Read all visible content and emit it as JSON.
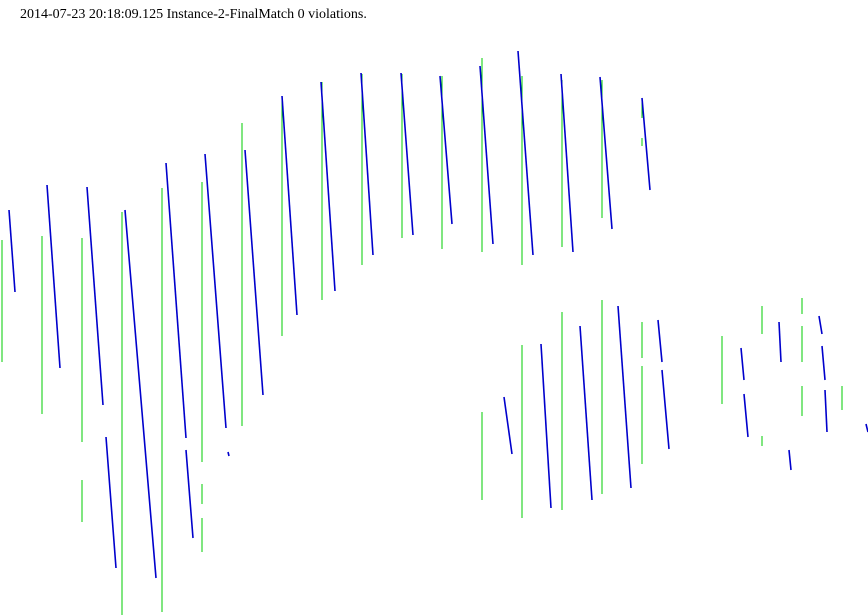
{
  "status_line": "2014-07-23 20:18:09.125 Instance-2-FinalMatch 0 violations.",
  "colors": {
    "reference": "#00cc00",
    "match": "#0000cc",
    "background": "#ffffff",
    "text": "#000000"
  },
  "legend": {
    "reference_segments": "green vertical segments",
    "match_segments": "blue slanted segments"
  }
}
